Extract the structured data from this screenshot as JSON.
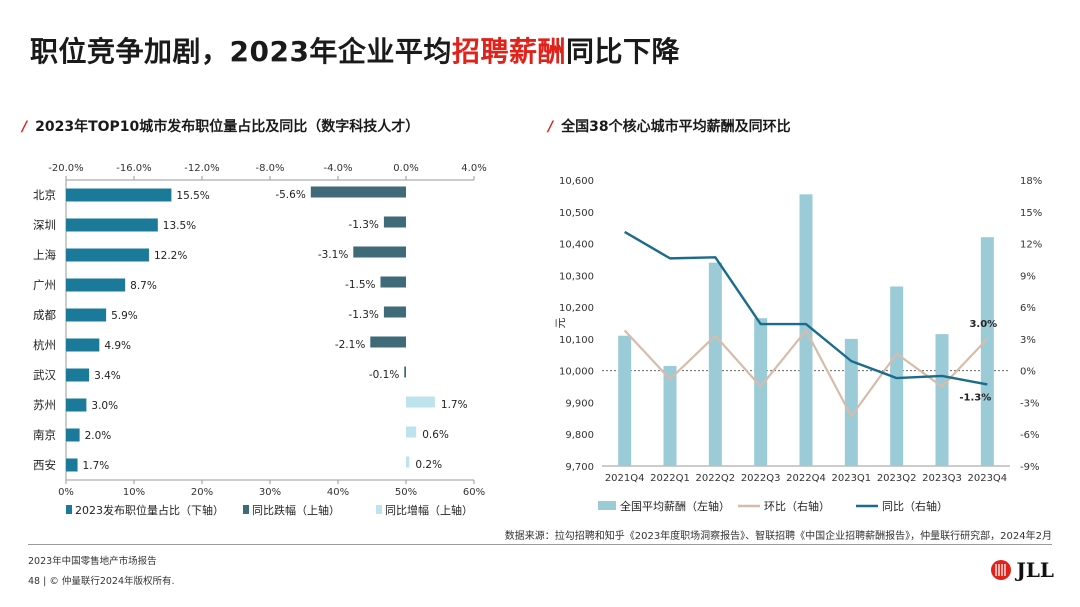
{
  "header": {
    "title_pre": "职位竞争加剧，2023年企业平均",
    "title_hl": "招聘薪酬",
    "title_post": "同比下降"
  },
  "left_section": {
    "title": "2023年TOP10城市发布职位量占比及同比（数字科技人才）"
  },
  "right_section": {
    "title": "全国38个核心城市平均薪酬及同环比"
  },
  "chart_data": [
    {
      "type": "bar",
      "orientation": "horizontal",
      "title": "2023年TOP10城市发布职位量占比及同比（数字科技人才）",
      "categories": [
        "北京",
        "深圳",
        "上海",
        "广州",
        "成都",
        "杭州",
        "武汉",
        "苏州",
        "南京",
        "西安"
      ],
      "top_axis_ticks": [
        "-20.0%",
        "-16.0%",
        "-12.0%",
        "-8.0%",
        "-4.0%",
        "0.0%",
        "4.0%"
      ],
      "top_axis_range": [
        -20,
        4
      ],
      "bottom_axis_ticks": [
        "0%",
        "10%",
        "20%",
        "30%",
        "40%",
        "50%",
        "60%"
      ],
      "bottom_axis_range": [
        0,
        60
      ],
      "series": [
        {
          "name": "2023发布职位量占比（下轴）",
          "axis": "bottom",
          "color": "#1b7a99",
          "values": [
            15.5,
            13.5,
            12.2,
            8.7,
            5.9,
            4.9,
            3.4,
            3.0,
            2.0,
            1.7
          ],
          "labels": [
            "15.5%",
            "13.5%",
            "12.2%",
            "8.7%",
            "5.9%",
            "4.9%",
            "3.4%",
            "3.0%",
            "2.0%",
            "1.7%"
          ]
        },
        {
          "name": "同比跌幅（上轴）",
          "axis": "top",
          "color": "#3f6a78",
          "values": [
            -5.6,
            -1.3,
            -3.1,
            -1.5,
            -1.3,
            -2.1,
            -0.1,
            null,
            null,
            null
          ],
          "labels": [
            "-5.6%",
            "-1.3%",
            "-3.1%",
            "-1.5%",
            "-1.3%",
            "-2.1%",
            "-0.1%",
            "",
            "",
            ""
          ]
        },
        {
          "name": "同比增幅（上轴）",
          "axis": "top",
          "color": "#bfe3ec",
          "values": [
            null,
            null,
            null,
            null,
            null,
            null,
            null,
            1.7,
            0.6,
            0.2
          ],
          "labels": [
            "",
            "",
            "",
            "",
            "",
            "",
            "",
            "1.7%",
            "0.6%",
            "0.2%"
          ]
        }
      ],
      "legend_position": "bottom"
    },
    {
      "type": "bar_line_combo",
      "title": "全国38个核心城市平均薪酬及同环比",
      "categories": [
        "2021Q4",
        "2022Q1",
        "2022Q2",
        "2022Q3",
        "2022Q4",
        "2023Q1",
        "2023Q2",
        "2023Q3",
        "2023Q4"
      ],
      "ylabel_left": "元",
      "left_axis_ticks": [
        "9,700",
        "9,800",
        "9,900",
        "10,000",
        "10,100",
        "10,200",
        "10,300",
        "10,400",
        "10,500",
        "10,600"
      ],
      "left_axis_range": [
        9700,
        10600
      ],
      "right_axis_ticks": [
        "-9%",
        "-6%",
        "-3%",
        "0%",
        "3%",
        "6%",
        "9%",
        "12%",
        "15%",
        "18%"
      ],
      "right_axis_range": [
        -9,
        18
      ],
      "series": [
        {
          "name": "全国平均薪酬（左轴）",
          "type": "bar",
          "axis": "left",
          "color": "#9ccbd8",
          "values": [
            10110,
            10015,
            10340,
            10165,
            10555,
            10100,
            10265,
            10115,
            10420
          ]
        },
        {
          "name": "环比（右轴）",
          "type": "line",
          "axis": "right",
          "color": "#d6bcaa",
          "values": [
            3.8,
            -0.8,
            3.3,
            -1.5,
            3.8,
            -4.3,
            1.6,
            -1.5,
            3.0
          ]
        },
        {
          "name": "同比（右轴）",
          "type": "line",
          "axis": "right",
          "color": "#1b6b8c",
          "values": [
            13.1,
            10.6,
            10.7,
            4.4,
            4.4,
            0.9,
            -0.7,
            -0.5,
            -1.3
          ]
        }
      ],
      "annotations": [
        "3.0%",
        "-1.3%"
      ],
      "reference_line": 0,
      "legend_position": "bottom"
    }
  ],
  "footer": {
    "source": "数据来源：拉勾招聘和知乎《2023年度职场洞察报告》、智联招聘《中国企业招聘薪酬报告》，仲量联行研究部，2024年2月",
    "report": "2023年中国零售地产市场报告",
    "copyright": "48 | © 仲量联行2024年版权所有.",
    "logo_text": "JLL"
  }
}
